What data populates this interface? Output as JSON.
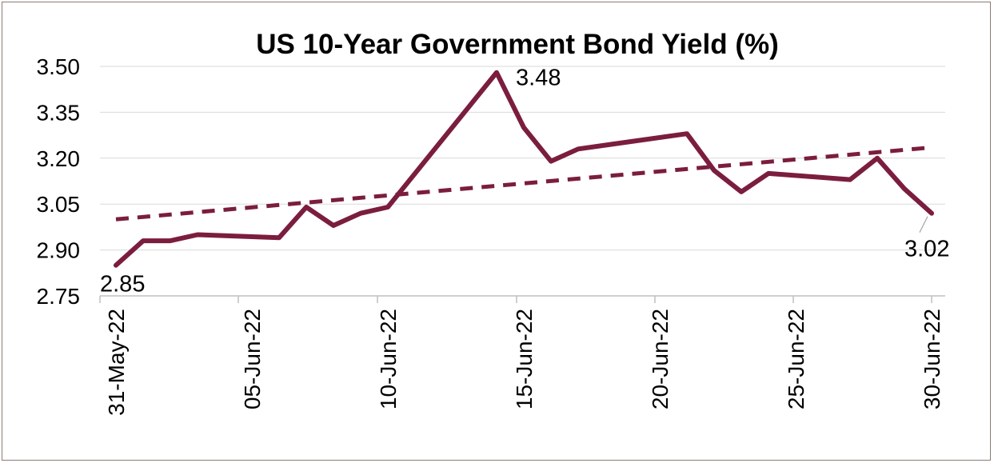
{
  "chart_data": {
    "type": "line",
    "title": "US 10-Year Government Bond Yield (%)",
    "xlabel": "",
    "ylabel": "",
    "ylim": [
      2.75,
      3.5
    ],
    "y_ticks": [
      "2.75",
      "2.90",
      "3.05",
      "3.20",
      "3.35",
      "3.50"
    ],
    "x_ticks": [
      "31-May-22",
      "05-Jun-22",
      "10-Jun-22",
      "15-Jun-22",
      "20-Jun-22",
      "25-Jun-22",
      "30-Jun-22"
    ],
    "x_tick_dates": [
      "2022-05-31",
      "2022-06-05",
      "2022-06-10",
      "2022-06-15",
      "2022-06-20",
      "2022-06-25",
      "2022-06-30"
    ],
    "x_range": [
      "2022-05-31",
      "2022-06-30"
    ],
    "series": [
      {
        "color": "#7b1d3e",
        "style": "solid",
        "x": [
          "2022-05-31",
          "2022-06-01",
          "2022-06-02",
          "2022-06-03",
          "2022-06-06",
          "2022-06-07",
          "2022-06-08",
          "2022-06-09",
          "2022-06-10",
          "2022-06-13",
          "2022-06-14",
          "2022-06-15",
          "2022-06-16",
          "2022-06-17",
          "2022-06-21",
          "2022-06-22",
          "2022-06-23",
          "2022-06-24",
          "2022-06-27",
          "2022-06-28",
          "2022-06-29",
          "2022-06-30"
        ],
        "values": [
          2.85,
          2.93,
          2.93,
          2.95,
          2.94,
          3.04,
          2.98,
          3.02,
          3.04,
          3.37,
          3.48,
          3.3,
          3.19,
          3.23,
          3.28,
          3.16,
          3.09,
          3.15,
          3.13,
          3.2,
          3.1,
          3.02
        ]
      },
      {
        "color": "#7b1d3e",
        "style": "dashed",
        "trendline": true,
        "x": [
          "2022-05-31",
          "2022-06-30"
        ],
        "values": [
          3.0,
          3.235
        ]
      }
    ],
    "data_labels": [
      {
        "text": "2.85",
        "anchor": "bottom"
      },
      {
        "text": "3.48",
        "anchor": "right"
      },
      {
        "text": "3.02",
        "anchor": "bottom"
      }
    ],
    "grid": true,
    "legend": "none"
  }
}
